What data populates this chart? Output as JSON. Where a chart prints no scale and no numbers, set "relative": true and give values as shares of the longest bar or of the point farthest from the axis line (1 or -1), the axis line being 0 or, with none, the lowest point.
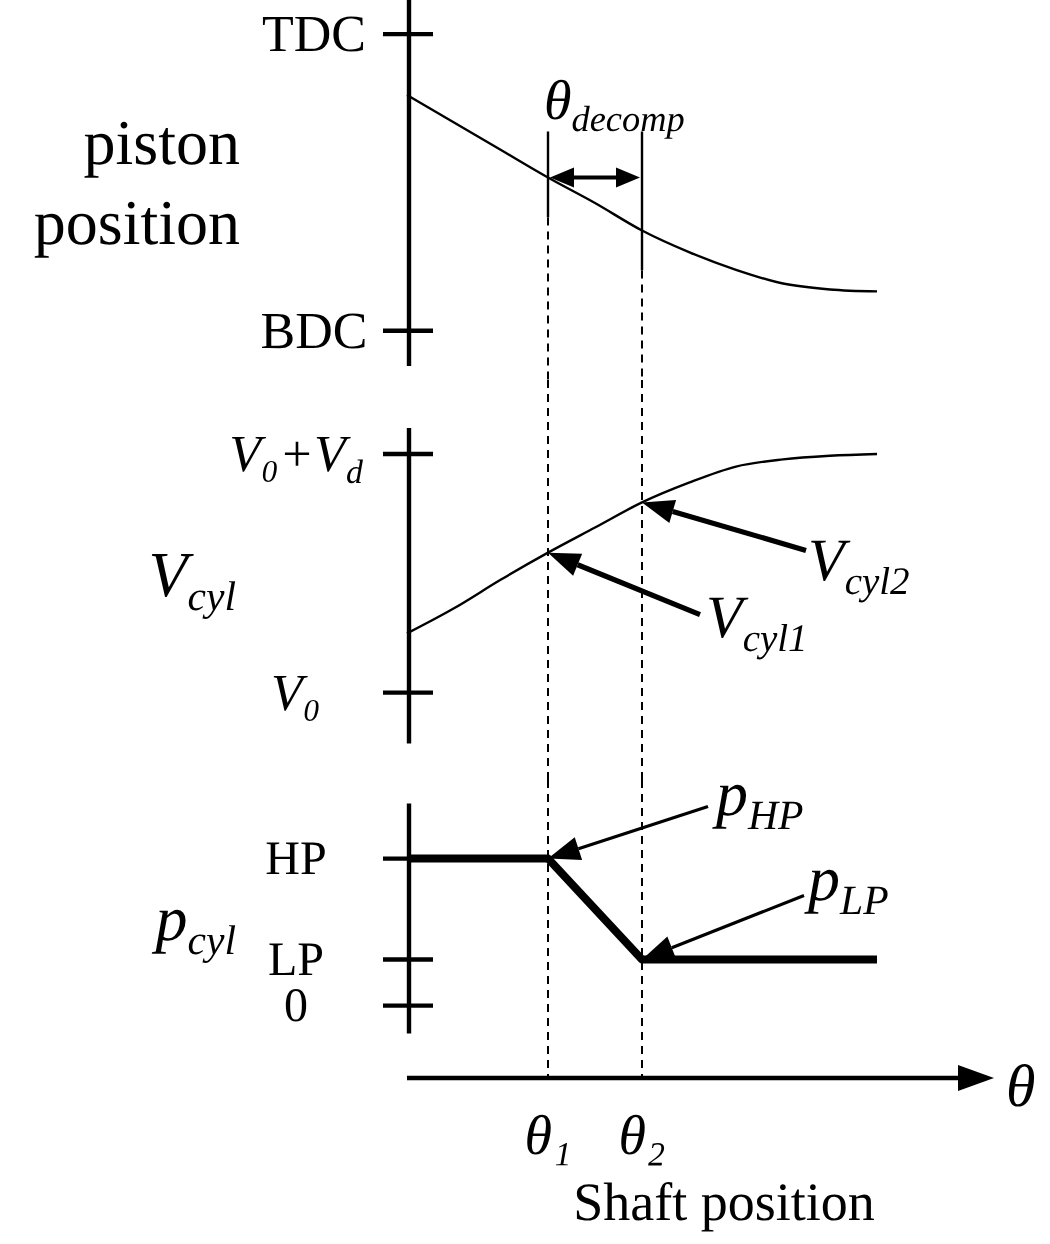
{
  "chart_data": [
    {
      "type": "line",
      "relative": true,
      "ylabel": "piston position",
      "categories": [
        null,
        null,
        null,
        "θ₁",
        null,
        "θ₂",
        null,
        null,
        null,
        null,
        null
      ],
      "values": [
        1,
        0.86,
        0.72,
        0.58,
        0.45,
        0.31,
        0.2,
        0.11,
        0.04,
        0.01,
        0
      ],
      "color": "#000000",
      "tick_labels": false,
      "ref_lines": [
        {
          "axis": "y",
          "value": 1.31,
          "label": "TDC"
        },
        {
          "axis": "y",
          "value": -0.2,
          "label": "BDC"
        },
        {
          "axis": "x",
          "value": "θ₁",
          "line_style": "dashed"
        },
        {
          "axis": "x",
          "value": "θ₂",
          "line_style": "dashed"
        }
      ],
      "annotations": [
        {
          "text": "θ$_{decomp}$",
          "x": "θ₁",
          "y": 0.58
        }
      ]
    },
    {
      "type": "line",
      "relative": true,
      "ylabel": "V$_{cyl}$",
      "categories": [
        null,
        null,
        null,
        "θ₁",
        null,
        "θ₂",
        null,
        null,
        null,
        null,
        null
      ],
      "values": [
        0,
        0.14,
        0.3,
        0.45,
        0.59,
        0.73,
        0.84,
        0.93,
        0.97,
        0.99,
        1
      ],
      "color": "#000000",
      "tick_labels": false,
      "ref_lines": [
        {
          "axis": "y",
          "value": 1,
          "label": "V₀+V$_{d}$"
        },
        {
          "axis": "y",
          "value": -0.33,
          "label": "V₀"
        },
        {
          "axis": "x",
          "value": "θ₁",
          "line_style": "dashed"
        },
        {
          "axis": "x",
          "value": "θ₂",
          "line_style": "dashed"
        }
      ],
      "annotations": [
        {
          "text": "V$_{cyl2}$",
          "x": "θ₂",
          "y": 0.73
        },
        {
          "text": "V$_{cyl1}$",
          "x": "θ₁",
          "y": 0.45
        }
      ]
    },
    {
      "type": "line",
      "relative": true,
      "ylabel": "p$_{cyl}$",
      "xlabel": "Shaft position",
      "categories": [
        null,
        null,
        null,
        "θ₁",
        null,
        "θ₂",
        null,
        null,
        null,
        null,
        null
      ],
      "values": [
        1,
        1,
        1,
        1,
        0.77,
        0.54,
        0.54,
        0.54,
        0.54,
        0.54,
        0.54
      ],
      "color": "#000000",
      "tick_labels": "x",
      "ref_lines": [
        {
          "axis": "y",
          "value": 1,
          "label": "HP"
        },
        {
          "axis": "y",
          "value": 0.54,
          "label": "LP"
        },
        {
          "axis": "y",
          "value": 0.33,
          "label": "0"
        },
        {
          "axis": "x",
          "value": "θ₁",
          "line_style": "dashed"
        },
        {
          "axis": "x",
          "value": "θ₂",
          "line_style": "dashed"
        }
      ],
      "annotations": [
        {
          "text": "p$_{HP}$",
          "x": "θ₁",
          "y": 1
        },
        {
          "text": "p$_{LP}$",
          "x": "θ₂",
          "y": 0.54
        },
        "θ"
      ]
    }
  ]
}
